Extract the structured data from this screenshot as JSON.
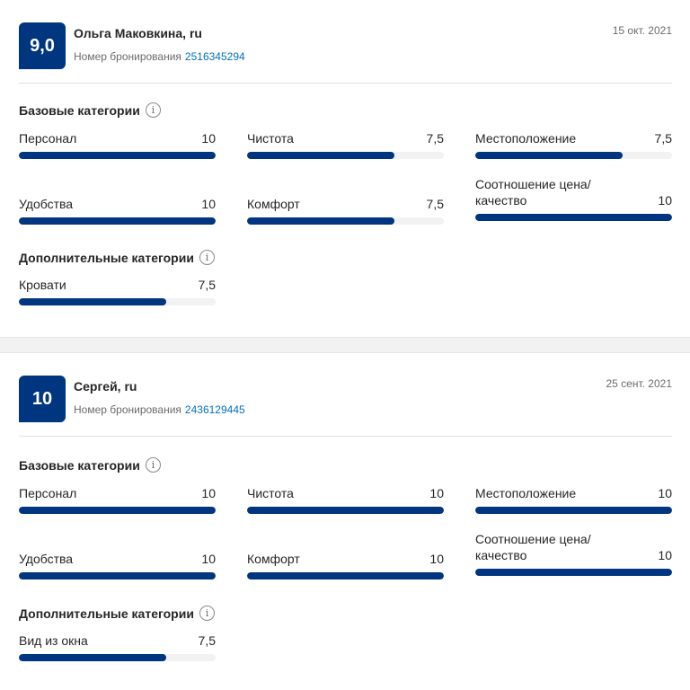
{
  "reviews": [
    {
      "score": "9,0",
      "name": "Ольга Маковкина, ru",
      "booking_label": "Номер бронирования",
      "booking_number": "2516345294",
      "date": "15 окт. 2021",
      "base_title": "Базовые категории",
      "base_categories": [
        {
          "label": "Персонал",
          "score": "10",
          "fraction": 1.0
        },
        {
          "label": "Чистота",
          "score": "7,5",
          "fraction": 0.75
        },
        {
          "label": "Местоположение",
          "score": "7,5",
          "fraction": 0.75
        },
        {
          "label": "Удобства",
          "score": "10",
          "fraction": 1.0
        },
        {
          "label": "Комфорт",
          "score": "7,5",
          "fraction": 0.75
        },
        {
          "label": "Соотношение цена/ качество",
          "score": "10",
          "fraction": 1.0
        }
      ],
      "extra_title": "Дополнительные категории",
      "extra_categories": [
        {
          "label": "Кровати",
          "score": "7,5",
          "fraction": 0.75
        }
      ]
    },
    {
      "score": "10",
      "name": "Сергей, ru",
      "booking_label": "Номер бронирования",
      "booking_number": "2436129445",
      "date": "25 сент. 2021",
      "base_title": "Базовые категории",
      "base_categories": [
        {
          "label": "Персонал",
          "score": "10",
          "fraction": 1.0
        },
        {
          "label": "Чистота",
          "score": "10",
          "fraction": 1.0
        },
        {
          "label": "Местоположение",
          "score": "10",
          "fraction": 1.0
        },
        {
          "label": "Удобства",
          "score": "10",
          "fraction": 1.0
        },
        {
          "label": "Комфорт",
          "score": "10",
          "fraction": 1.0
        },
        {
          "label": "Соотношение цена/ качество",
          "score": "10",
          "fraction": 1.0
        }
      ],
      "extra_title": "Дополнительные категории",
      "extra_categories": [
        {
          "label": "Вид из окна",
          "score": "7,5",
          "fraction": 0.75
        }
      ]
    }
  ],
  "icons": {
    "info": "info-icon",
    "info_glyph": "i"
  },
  "colors": {
    "accent": "#003580",
    "link": "#0071c2",
    "track": "#f2f2f2"
  }
}
